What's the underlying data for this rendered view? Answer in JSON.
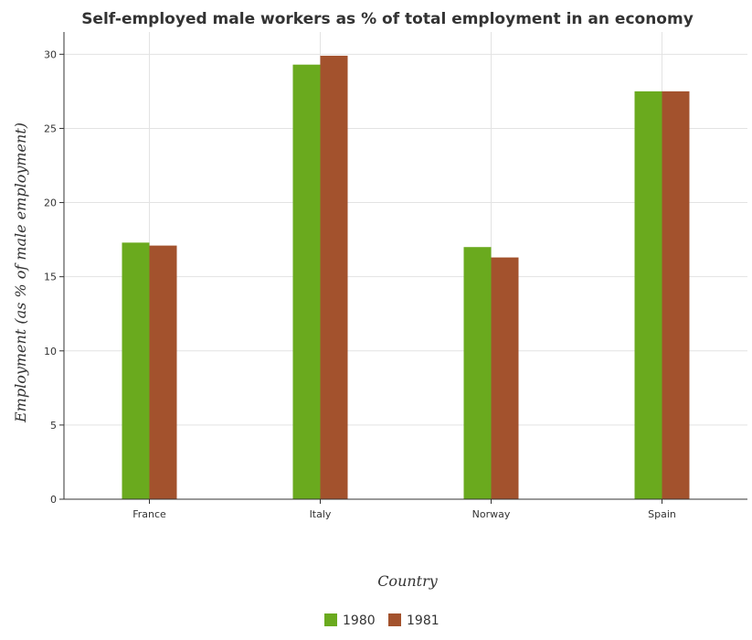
{
  "chart_data": {
    "type": "bar",
    "title": "Self-employed male workers as % of total employment in an economy",
    "xlabel": "Country",
    "ylabel": "Employment (as % of male employment)",
    "categories": [
      "France",
      "Italy",
      "Norway",
      "Spain"
    ],
    "series": [
      {
        "name": "1980",
        "values": [
          17.3,
          29.3,
          17.0,
          27.5
        ],
        "color": "#6aaa1e"
      },
      {
        "name": "1981",
        "values": [
          17.1,
          29.9,
          16.3,
          27.5
        ],
        "color": "#a3522d"
      }
    ],
    "ylim": [
      0,
      31.5
    ],
    "yticks": [
      0,
      5,
      10,
      15,
      20,
      25,
      30
    ],
    "grid": true,
    "legend": "bottom-center"
  }
}
